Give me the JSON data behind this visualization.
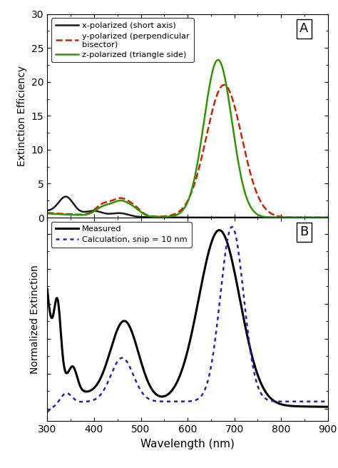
{
  "xlim": [
    300,
    900
  ],
  "panel_A": {
    "ylim": [
      0,
      30
    ],
    "yticks": [
      0,
      5,
      10,
      15,
      20,
      25,
      30
    ],
    "ylabel": "Extinction Efficiency",
    "label": "A"
  },
  "panel_B": {
    "ylabel": "Normalized Extinction",
    "xlabel": "Wavelength (nm)",
    "label": "B"
  },
  "xticks": [
    300,
    400,
    500,
    600,
    700,
    800,
    900
  ],
  "colors": {
    "x_pol": "#1a1a1a",
    "y_pol": "#cc2200",
    "z_pol": "#2a9900",
    "measured": "#000000",
    "calc": "#2222bb"
  }
}
